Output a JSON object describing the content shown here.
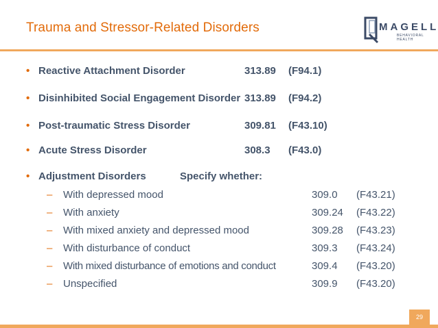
{
  "slide": {
    "title": "Trauma and Stressor-Related Disorders",
    "page_number": "29"
  },
  "logo": {
    "name": "MAGELLAN",
    "sub": "BEHAVIORAL HEALTH"
  },
  "bullets": [
    {
      "name": "Reactive Attachment Disorder",
      "code": "313.89",
      "icd": "(F94.1)"
    },
    {
      "name": "Disinhibited Social Engagement Disorder",
      "code": "313.89",
      "icd": "(F94.2)"
    },
    {
      "name": "Post-traumatic Stress Disorder",
      "code": "309.81",
      "icd": "(F43.10)"
    },
    {
      "name": "Acute Stress Disorder",
      "code": "308.3",
      "icd": "(F43.0)"
    },
    {
      "name": "Adjustment Disorders",
      "code": "Specify whether:",
      "icd": ""
    }
  ],
  "subitems": [
    {
      "name": "With depressed mood",
      "code": "309.0",
      "icd": "(F43.21)"
    },
    {
      "name": "With anxiety",
      "code": "309.24",
      "icd": "(F43.22)"
    },
    {
      "name": "With mixed anxiety and depressed mood",
      "code": "309.28",
      "icd": "(F43.23)"
    },
    {
      "name": "With disturbance of conduct",
      "code": "309.3",
      "icd": "(F43.24)"
    },
    {
      "name": "With mixed disturbance of emotions and conduct",
      "code": "309.4",
      "icd": "(F43.20)"
    },
    {
      "name": "Unspecified",
      "code": "309.9",
      "icd": "(F43.20)"
    }
  ],
  "colors": {
    "accent": "#e26b0a",
    "rule": "#f0a85c",
    "text": "#44546a"
  }
}
